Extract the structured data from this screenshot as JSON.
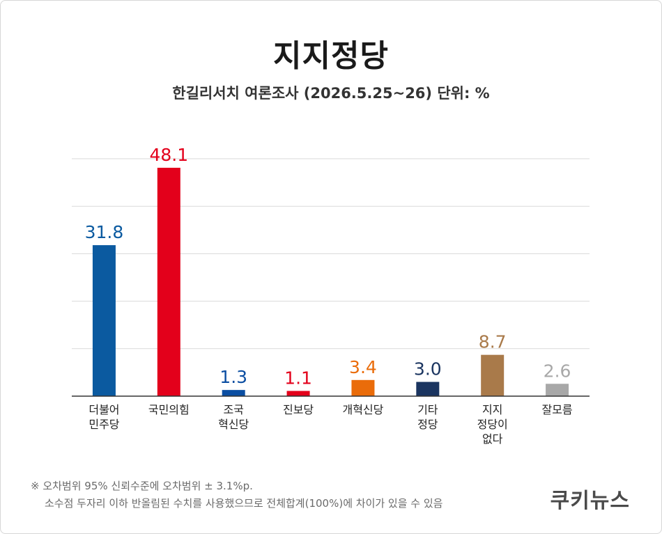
{
  "header": {
    "title": "지지정당",
    "subtitle": "한길리서치 여론조사 (2026.5.25~26) 단위: %"
  },
  "chart_data": {
    "type": "bar",
    "categories": [
      [
        "더불어",
        "민주당"
      ],
      [
        "국민의힘"
      ],
      [
        "조국",
        "혁신당"
      ],
      [
        "진보당"
      ],
      [
        "개혁신당"
      ],
      [
        "기타",
        "정당"
      ],
      [
        "지지",
        "정당이",
        "없다"
      ],
      [
        "잘모름"
      ]
    ],
    "values": [
      31.8,
      48.1,
      1.3,
      1.1,
      3.4,
      3.0,
      8.7,
      2.6
    ],
    "value_labels": [
      "31.8",
      "48.1",
      "1.3",
      "1.1",
      "3.4",
      "3.0",
      "8.7",
      "2.6"
    ],
    "colors": [
      "#0b5aa0",
      "#e3001b",
      "#0b4ea2",
      "#e3001b",
      "#ea6c0a",
      "#1b3560",
      "#a97a4a",
      "#a8a8a8"
    ],
    "ylim": [
      0,
      50
    ],
    "grid": true,
    "xlabel": "",
    "ylabel": ""
  },
  "footer": {
    "note_line1": "※ 오차범위 95% 신뢰수준에 오차범위 ± 3.1%p.",
    "note_line2": "소수점 두자리 이하 반올림된 수치를 사용했으므로 전체합계(100%)에 차이가 있을 수 있음",
    "brand": "쿠키뉴스"
  }
}
